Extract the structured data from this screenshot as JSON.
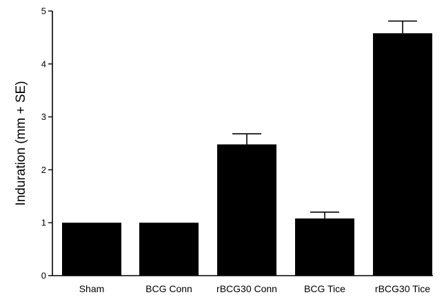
{
  "chart_data": {
    "type": "bar",
    "title": "",
    "xlabel": "",
    "ylabel": "Induration (mm + SE)",
    "ylim": [
      0,
      5
    ],
    "yticks": [
      0,
      1,
      2,
      3,
      4,
      5
    ],
    "categories": [
      "Sham",
      "BCG Conn",
      "rBCG30 Conn",
      "BCG Tice",
      "rBCG30 Tice"
    ],
    "values": [
      1.0,
      1.0,
      2.48,
      1.08,
      4.58
    ],
    "errors": [
      0,
      0,
      0.2,
      0.12,
      0.23
    ],
    "bar_color": "#000000",
    "grid": false,
    "legend": "none"
  }
}
